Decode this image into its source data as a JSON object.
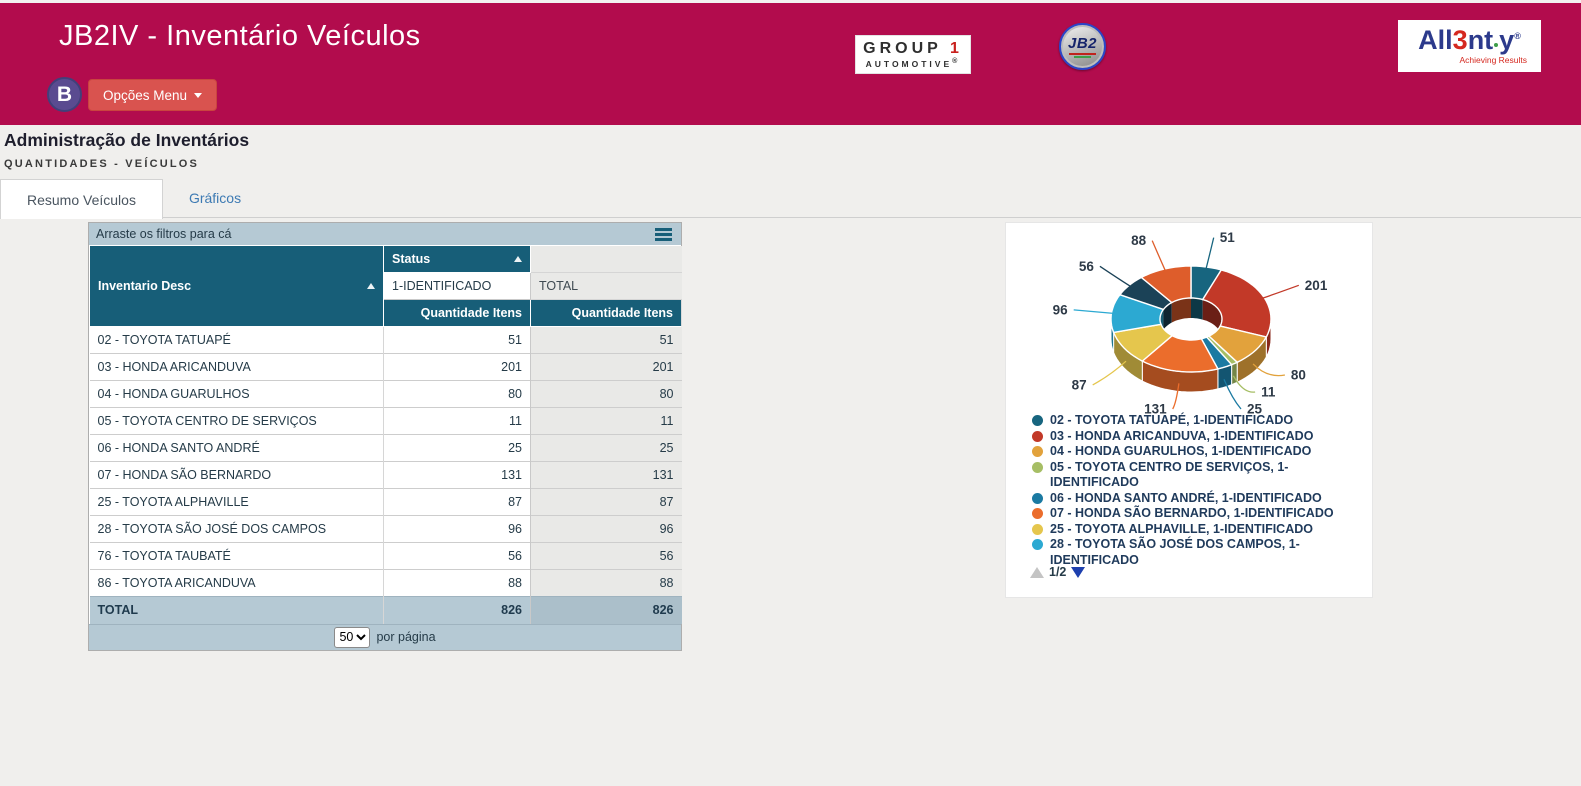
{
  "header": {
    "app_title": "JB2IV - Inventário Veículos",
    "avatar_letter": "B",
    "menu_button_label": "Opções Menu",
    "logos": {
      "group1": {
        "word": "GROUP",
        "number": "1",
        "line2": "AUTOMOTIVE",
        "reg": "®"
      },
      "jb2": {
        "text": "JB2"
      },
      "allenty": {
        "prefix": "All",
        "digit": "3",
        "suffix_nt": "nt",
        "suffix_y": "y",
        "reg": "®",
        "tagline": "Achieving Results"
      }
    }
  },
  "page": {
    "title": "Administração de Inventários",
    "subtitle": "QUANTIDADES - VEÍCULOS",
    "tabs": [
      {
        "label": "Resumo Veículos",
        "active": true
      },
      {
        "label": "Gráficos",
        "active": false
      }
    ]
  },
  "pivot": {
    "filter_hint": "Arraste os filtros para cá",
    "row_dimension": "Inventario Desc",
    "column_dimension": "Status",
    "column_value": "1-IDENTIFICADO",
    "total_label": "TOTAL",
    "measure_label": "Quantidade Itens",
    "rows": [
      {
        "label": "02 - TOYOTA TATUAPÉ",
        "identificado": "51",
        "total": "51"
      },
      {
        "label": "03 - HONDA ARICANDUVA",
        "identificado": "201",
        "total": "201"
      },
      {
        "label": "04 - HONDA GUARULHOS",
        "identificado": "80",
        "total": "80"
      },
      {
        "label": "05 - TOYOTA CENTRO DE SERVIÇOS",
        "identificado": "11",
        "total": "11"
      },
      {
        "label": "06 - HONDA SANTO ANDRÉ",
        "identificado": "25",
        "total": "25"
      },
      {
        "label": "07 - HONDA SÃO BERNARDO",
        "identificado": "131",
        "total": "131"
      },
      {
        "label": "25 - TOYOTA ALPHAVILLE",
        "identificado": "87",
        "total": "87"
      },
      {
        "label": "28 - TOYOTA SÃO JOSÉ DOS CAMPOS",
        "identificado": "96",
        "total": "96"
      },
      {
        "label": "76 - TOYOTA TAUBATÉ",
        "identificado": "56",
        "total": "56"
      },
      {
        "label": "86 - TOYOTA ARICANDUVA",
        "identificado": "88",
        "total": "88"
      }
    ],
    "total_row": {
      "label": "TOTAL",
      "identificado": "826",
      "total": "826"
    },
    "pager": {
      "page_size": "50",
      "suffix_label": "por página"
    }
  },
  "chart_data": {
    "type": "pie",
    "subtype": "3d-donut",
    "total": 826,
    "legend_position": "bottom-left",
    "legend_page": "1/2",
    "legend_visible_count": 8,
    "series": [
      {
        "label": "02 - TOYOTA TATUAPÉ, 1-IDENTIFICADO",
        "value": 51,
        "color": "#17657F"
      },
      {
        "label": "03 - HONDA ARICANDUVA, 1-IDENTIFICADO",
        "value": 201,
        "color": "#C23928"
      },
      {
        "label": "04 - HONDA GUARULHOS, 1-IDENTIFICADO",
        "value": 80,
        "color": "#E2A23C"
      },
      {
        "label": "05 - TOYOTA CENTRO DE SERVIÇOS, 1-IDENTIFICADO",
        "value": 11,
        "color": "#A6BE65"
      },
      {
        "label": "06 - HONDA SANTO ANDRÉ, 1-IDENTIFICADO",
        "value": 25,
        "color": "#1B7AA2"
      },
      {
        "label": "07 - HONDA SÃO BERNARDO, 1-IDENTIFICADO",
        "value": 131,
        "color": "#EB6D2C"
      },
      {
        "label": "25 - TOYOTA ALPHAVILLE, 1-IDENTIFICADO",
        "value": 87,
        "color": "#E5C64D"
      },
      {
        "label": "28 - TOYOTA SÃO JOSÉ DOS CAMPOS, 1-IDENTIFICADO",
        "value": 96,
        "color": "#2CA9D2"
      },
      {
        "label": "76 - TOYOTA TAUBATÉ, 1-IDENTIFICADO",
        "value": 56,
        "color": "#1B4257"
      },
      {
        "label": "86 - TOYOTA ARICANDUVA, 1-IDENTIFICADO",
        "value": 88,
        "color": "#DE5D2B"
      }
    ]
  },
  "colors": {
    "header_bar": "#B20C4D",
    "menu_button": "#D9534F",
    "avatar": "#5A4B90",
    "pivot_header": "#175E78",
    "pivot_band": "#B5C9D4",
    "tab_link": "#3D7AB3"
  }
}
